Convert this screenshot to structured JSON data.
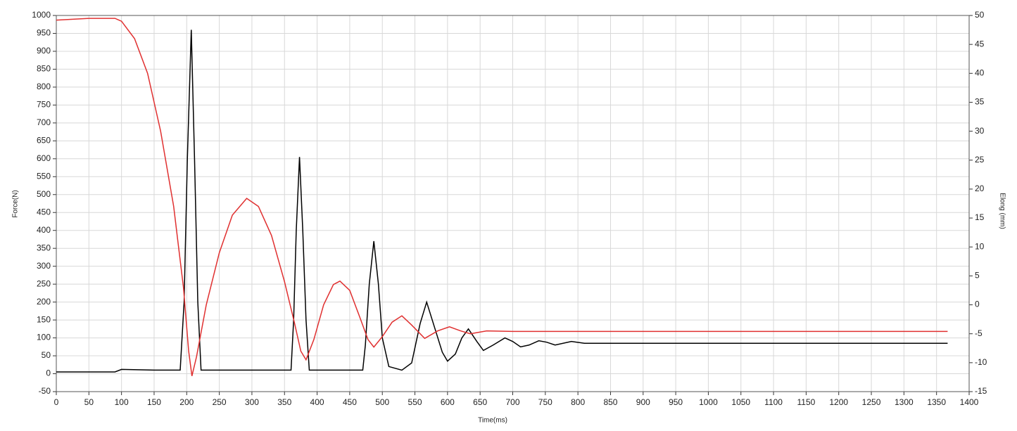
{
  "chart_data": {
    "type": "line",
    "xlabel": "Time(ms)",
    "ylabel": "Force(N)",
    "y2label": "Elong (mm)",
    "grid": true,
    "xlim": [
      0,
      1400
    ],
    "xticks": [
      0,
      50,
      100,
      150,
      200,
      250,
      300,
      350,
      400,
      450,
      500,
      550,
      600,
      650,
      700,
      750,
      800,
      850,
      900,
      950,
      1000,
      1050,
      1100,
      1150,
      1200,
      1250,
      1300,
      1350,
      1400
    ],
    "ylim": [
      -50,
      1000
    ],
    "yticks": [
      -50,
      0,
      50,
      100,
      150,
      200,
      250,
      300,
      350,
      400,
      450,
      500,
      550,
      600,
      650,
      700,
      750,
      800,
      850,
      900,
      950,
      1000
    ],
    "y2lim": [
      -15,
      50
    ],
    "y2ticks": [
      -15,
      -10,
      -5,
      0,
      5,
      10,
      15,
      20,
      25,
      30,
      35,
      40,
      45,
      50
    ],
    "series": [
      {
        "color": "#000000",
        "x": [
          0,
          90,
          100,
          150,
          190,
          196,
          201,
          207,
          212,
          217,
          222,
          300,
          360,
          364,
          368,
          373,
          378,
          383,
          388,
          470,
          474,
          480,
          487,
          494,
          500,
          510,
          530,
          545,
          558,
          568,
          580,
          592,
          600,
          612,
          622,
          632,
          645,
          655,
          670,
          688,
          700,
          712,
          725,
          740,
          752,
          765,
          790,
          810,
          1367
        ],
        "values": [
          5,
          5,
          12,
          10,
          10,
          200,
          600,
          960,
          600,
          200,
          10,
          10,
          10,
          150,
          400,
          605,
          400,
          150,
          10,
          10,
          80,
          250,
          370,
          250,
          100,
          20,
          10,
          30,
          140,
          200,
          130,
          60,
          35,
          55,
          100,
          125,
          90,
          65,
          80,
          100,
          90,
          75,
          80,
          92,
          88,
          80,
          90,
          85,
          85
        ]
      },
      {
        "color": "#e03030",
        "axis": "y2",
        "x": [
          0,
          50,
          90,
          100,
          120,
          140,
          160,
          180,
          195,
          203,
          208,
          215,
          230,
          250,
          270,
          292,
          310,
          330,
          350,
          365,
          375,
          383,
          395,
          410,
          425,
          435,
          450,
          465,
          478,
          487,
          500,
          515,
          530,
          545,
          565,
          585,
          603,
          620,
          635,
          660,
          700,
          800,
          1000,
          1200,
          1367
        ],
        "values": [
          49.2,
          49.5,
          49.5,
          49,
          46,
          40,
          30,
          17,
          3,
          -8,
          -12.3,
          -9,
          0,
          9,
          15.5,
          18.4,
          17,
          12,
          4,
          -3,
          -8,
          -9.5,
          -6,
          0,
          3.5,
          4.1,
          2.5,
          -2,
          -6,
          -7.3,
          -5.5,
          -3,
          -1.9,
          -3.5,
          -5.8,
          -4.5,
          -3.8,
          -4.5,
          -5,
          -4.5,
          -4.6,
          -4.6,
          -4.6,
          -4.6,
          -4.6
        ]
      }
    ]
  }
}
